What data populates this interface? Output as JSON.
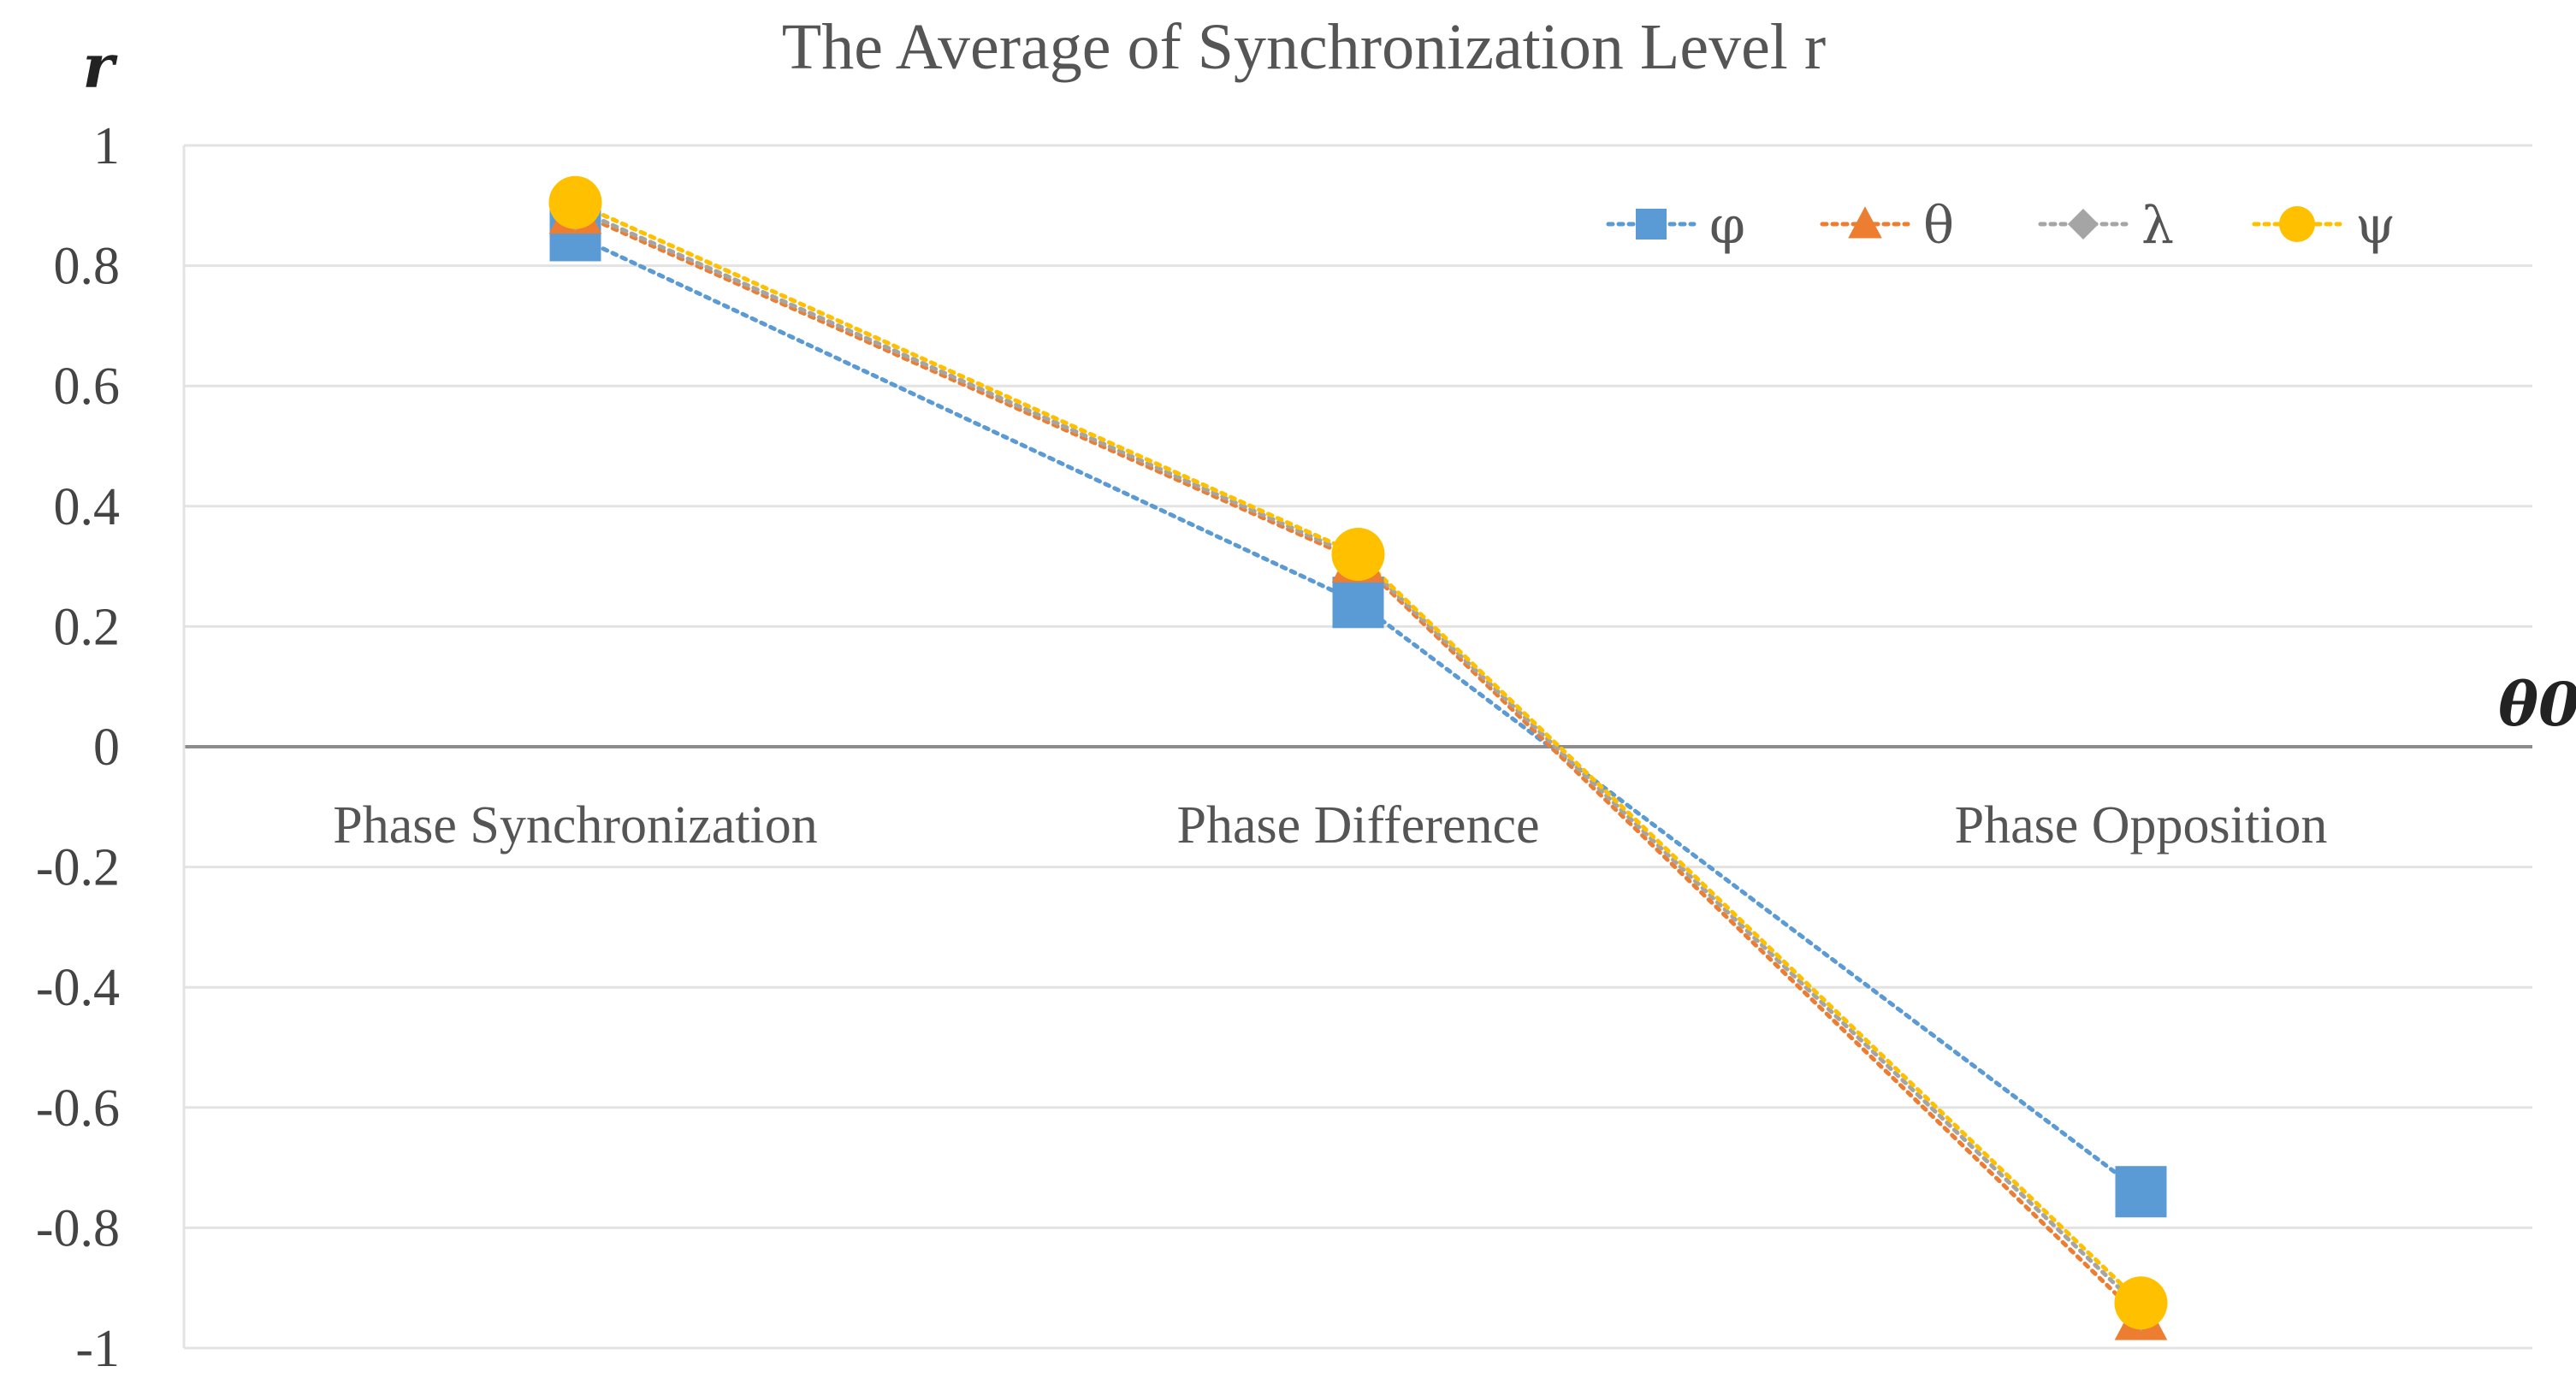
{
  "chart_data": {
    "type": "line",
    "title": "The Average of Synchronization Level r",
    "ylabel": "r",
    "xlabel": "θ0",
    "categories": [
      "Phase Synchronization",
      "Phase Difference",
      "Phase Opposition"
    ],
    "ylim": [
      -1,
      1
    ],
    "yticks": [
      1,
      0.8,
      0.6,
      0.4,
      0.2,
      0,
      -0.2,
      -0.4,
      -0.6,
      -0.8,
      -1
    ],
    "ytick_labels": [
      "1",
      "0.8",
      "0.6",
      "0.4",
      "0.2",
      "0",
      "-0.2",
      "-0.4",
      "-0.6",
      "-0.8",
      "-1"
    ],
    "grid": true,
    "legend_position": "top-right",
    "series": [
      {
        "name": "φ",
        "values": [
          0.85,
          0.24,
          -0.74
        ],
        "color": "#5b9bd5",
        "marker": "square"
      },
      {
        "name": "θ",
        "values": [
          0.89,
          0.31,
          -0.95
        ],
        "color": "#ed7d31",
        "marker": "triangle"
      },
      {
        "name": "λ",
        "values": [
          0.895,
          0.315,
          -0.935
        ],
        "color": "#a5a5a5",
        "marker": "diamond"
      },
      {
        "name": "ψ",
        "values": [
          0.905,
          0.32,
          -0.925
        ],
        "color": "#ffc000",
        "marker": "circle"
      }
    ]
  }
}
